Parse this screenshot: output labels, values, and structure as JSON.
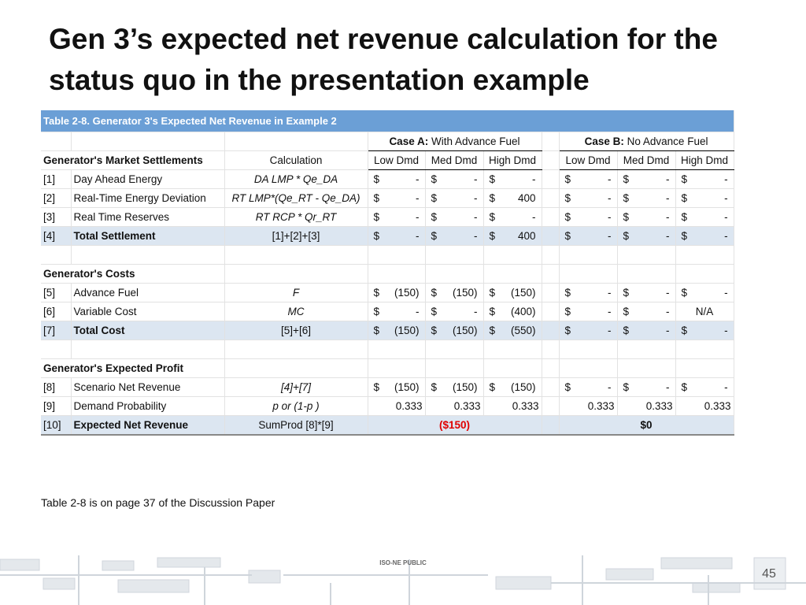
{
  "title": "Gen 3’s expected net revenue calculation for the status quo in the presentation example",
  "table": {
    "caption": "Table 2-8.  Generator 3's Expected Net Revenue in  Example 2",
    "case_a": {
      "label": "Case A:",
      "desc": "With Advance Fuel"
    },
    "case_b": {
      "label": "Case B:",
      "desc": "No Advance Fuel"
    },
    "header": [
      "Generator's Market Settlements",
      "Calculation",
      "Low Dmd",
      "Med Dmd",
      "High Dmd",
      "Low Dmd",
      "Med Dmd",
      "High Dmd"
    ],
    "rows": [
      {
        "type": "data",
        "num": "[1]",
        "label": "Day Ahead Energy",
        "calc": "DA LMP * Qe_DA",
        "a": [
          [
            "$",
            "-"
          ],
          [
            "$",
            "-"
          ],
          [
            "$",
            "-"
          ]
        ],
        "b": [
          [
            "$",
            "-"
          ],
          [
            "$",
            "-"
          ],
          [
            "$",
            "-"
          ]
        ]
      },
      {
        "type": "data",
        "num": "[2]",
        "label": "Real-Time Energy Deviation",
        "calc": "RT LMP*(Qe_RT - Qe_DA)",
        "a": [
          [
            "$",
            "-"
          ],
          [
            "$",
            "-"
          ],
          [
            "$",
            "400"
          ]
        ],
        "b": [
          [
            "$",
            "-"
          ],
          [
            "$",
            "-"
          ],
          [
            "$",
            "-"
          ]
        ]
      },
      {
        "type": "data",
        "num": "[3]",
        "label": "Real Time Reserves",
        "calc": "RT RCP * Qr_RT",
        "a": [
          [
            "$",
            "-"
          ],
          [
            "$",
            "-"
          ],
          [
            "$",
            "-"
          ]
        ],
        "b": [
          [
            "$",
            "-"
          ],
          [
            "$",
            "-"
          ],
          [
            "$",
            "-"
          ]
        ]
      },
      {
        "type": "total",
        "num": "[4]",
        "label": "Total Settlement",
        "calc": "[1]+[2]+[3]",
        "a": [
          [
            "$",
            "-"
          ],
          [
            "$",
            "-"
          ],
          [
            "$",
            "400"
          ]
        ],
        "b": [
          [
            "$",
            "-"
          ],
          [
            "$",
            "-"
          ],
          [
            "$",
            "-"
          ]
        ]
      },
      {
        "type": "blank"
      },
      {
        "type": "section",
        "label": "Generator's Costs"
      },
      {
        "type": "data",
        "num": "[5]",
        "label": "Advance Fuel",
        "calc": "F",
        "a": [
          [
            "$",
            "(150)"
          ],
          [
            "$",
            "(150)"
          ],
          [
            "$",
            "(150)"
          ]
        ],
        "b": [
          [
            "$",
            "-"
          ],
          [
            "$",
            "-"
          ],
          [
            "$",
            "-"
          ]
        ]
      },
      {
        "type": "data",
        "num": "[6]",
        "label": "Variable Cost",
        "calc": "MC",
        "a": [
          [
            "$",
            "-"
          ],
          [
            "$",
            "-"
          ],
          [
            "$",
            "(400)"
          ]
        ],
        "b": [
          [
            "$",
            "-"
          ],
          [
            "$",
            "-"
          ],
          [
            "N/A"
          ]
        ]
      },
      {
        "type": "total",
        "num": "[7]",
        "label": "Total Cost",
        "calc": "[5]+[6]",
        "a": [
          [
            "$",
            "(150)"
          ],
          [
            "$",
            "(150)"
          ],
          [
            "$",
            "(550)"
          ]
        ],
        "b": [
          [
            "$",
            "-"
          ],
          [
            "$",
            "-"
          ],
          [
            "$",
            "-"
          ]
        ]
      },
      {
        "type": "blank"
      },
      {
        "type": "section",
        "label": "Generator's Expected Profit"
      },
      {
        "type": "data",
        "num": "[8]",
        "label": "Scenario Net Revenue",
        "calc": "[4]+[7]",
        "a": [
          [
            "$",
            "(150)"
          ],
          [
            "$",
            "(150)"
          ],
          [
            "$",
            "(150)"
          ]
        ],
        "b": [
          [
            "$",
            "-"
          ],
          [
            "$",
            "-"
          ],
          [
            "$",
            "-"
          ]
        ]
      },
      {
        "type": "data",
        "num": "[9]",
        "label": "Demand Probability",
        "calc": "p  or (1-p )",
        "a": [
          [
            "0.333"
          ],
          [
            "0.333"
          ],
          [
            "0.333"
          ]
        ],
        "b": [
          [
            "0.333"
          ],
          [
            "0.333"
          ],
          [
            "0.333"
          ]
        ]
      },
      {
        "type": "final",
        "num": "[10]",
        "label": "Expected Net Revenue",
        "calc": "SumProd [8]*[9]",
        "a_total": "($150)",
        "b_total": "$0"
      }
    ]
  },
  "footnote": "Table 2-8 is on page 37 of the Discussion Paper",
  "footer_label": "ISO-NE PUBLIC",
  "page_number": "45"
}
